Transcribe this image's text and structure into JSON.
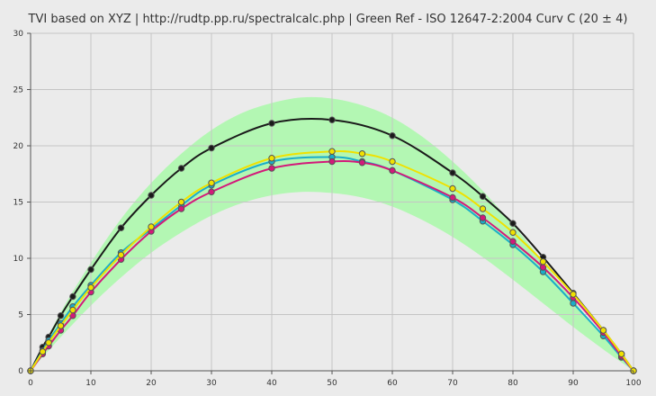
{
  "chart_data": {
    "type": "line",
    "title": "TVI based on XYZ  |  http://rudtp.pp.ru/spectralcalc.php  |  Green Ref - ISO 12647-2:2004 Curv C (20 ± 4)",
    "xlabel": "",
    "ylabel": "",
    "xlim": [
      0,
      100
    ],
    "ylim": [
      0,
      30
    ],
    "x_ticks": [
      "0",
      "10",
      "20",
      "30",
      "40",
      "50",
      "60",
      "70",
      "80",
      "90",
      "100"
    ],
    "y_ticks": [
      "0",
      "5",
      "10",
      "15",
      "20",
      "25",
      "30"
    ],
    "grid": true,
    "legend": "none",
    "reference_band": {
      "color": "#b3f7b3",
      "x": [
        0,
        5,
        10,
        15,
        20,
        25,
        30,
        35,
        40,
        45,
        50,
        55,
        60,
        65,
        70,
        75,
        80,
        85,
        90,
        95,
        100
      ],
      "lower": [
        0,
        3.0,
        5.8,
        8.3,
        10.5,
        12.3,
        13.8,
        14.9,
        15.6,
        15.9,
        15.8,
        15.4,
        14.6,
        13.4,
        11.9,
        10.1,
        8.1,
        6.0,
        3.9,
        1.9,
        0
      ],
      "upper": [
        0,
        5.2,
        9.6,
        13.5,
        16.7,
        19.3,
        21.4,
        22.9,
        23.8,
        24.3,
        24.2,
        23.6,
        22.5,
        20.8,
        18.6,
        16.0,
        13.0,
        9.7,
        6.3,
        3.0,
        0
      ]
    },
    "series": [
      {
        "color": "#1a1a1a",
        "x": [
          0,
          2,
          3,
          5,
          7,
          10,
          15,
          20,
          25,
          30,
          40,
          50,
          60,
          70,
          75,
          80,
          85,
          90,
          95,
          98,
          100
        ],
        "values": [
          0,
          2.1,
          3.0,
          4.9,
          6.6,
          9.0,
          12.7,
          15.6,
          18.0,
          19.8,
          22.0,
          22.3,
          20.9,
          17.6,
          15.5,
          13.1,
          10.1,
          6.9,
          3.6,
          1.5,
          0
        ]
      },
      {
        "color": "#1aaec8",
        "x": [
          0,
          2,
          3,
          5,
          7,
          10,
          15,
          20,
          25,
          30,
          40,
          50,
          55,
          60,
          70,
          75,
          80,
          85,
          90,
          95,
          98,
          100
        ],
        "values": [
          0,
          1.8,
          2.7,
          4.2,
          5.7,
          7.6,
          10.5,
          12.6,
          14.7,
          16.5,
          18.6,
          19.0,
          18.6,
          17.8,
          15.2,
          13.3,
          11.2,
          8.8,
          6.0,
          3.1,
          1.2,
          0
        ]
      },
      {
        "color": "#d3197a",
        "x": [
          0,
          2,
          3,
          5,
          7,
          10,
          15,
          20,
          25,
          30,
          40,
          50,
          55,
          60,
          70,
          75,
          80,
          85,
          90,
          95,
          98,
          100
        ],
        "values": [
          0,
          1.5,
          2.2,
          3.6,
          4.9,
          7.0,
          9.9,
          12.4,
          14.4,
          15.9,
          18.0,
          18.6,
          18.5,
          17.8,
          15.4,
          13.6,
          11.5,
          9.2,
          6.5,
          3.4,
          1.3,
          0
        ]
      },
      {
        "color": "#f0e100",
        "x": [
          0,
          2,
          3,
          5,
          7,
          10,
          15,
          20,
          25,
          30,
          40,
          50,
          55,
          60,
          70,
          75,
          80,
          85,
          90,
          95,
          98,
          100
        ],
        "values": [
          0,
          1.7,
          2.5,
          4.0,
          5.4,
          7.4,
          10.3,
          12.8,
          15.0,
          16.7,
          18.9,
          19.5,
          19.3,
          18.6,
          16.2,
          14.4,
          12.3,
          9.7,
          6.8,
          3.6,
          1.5,
          0
        ]
      }
    ]
  }
}
